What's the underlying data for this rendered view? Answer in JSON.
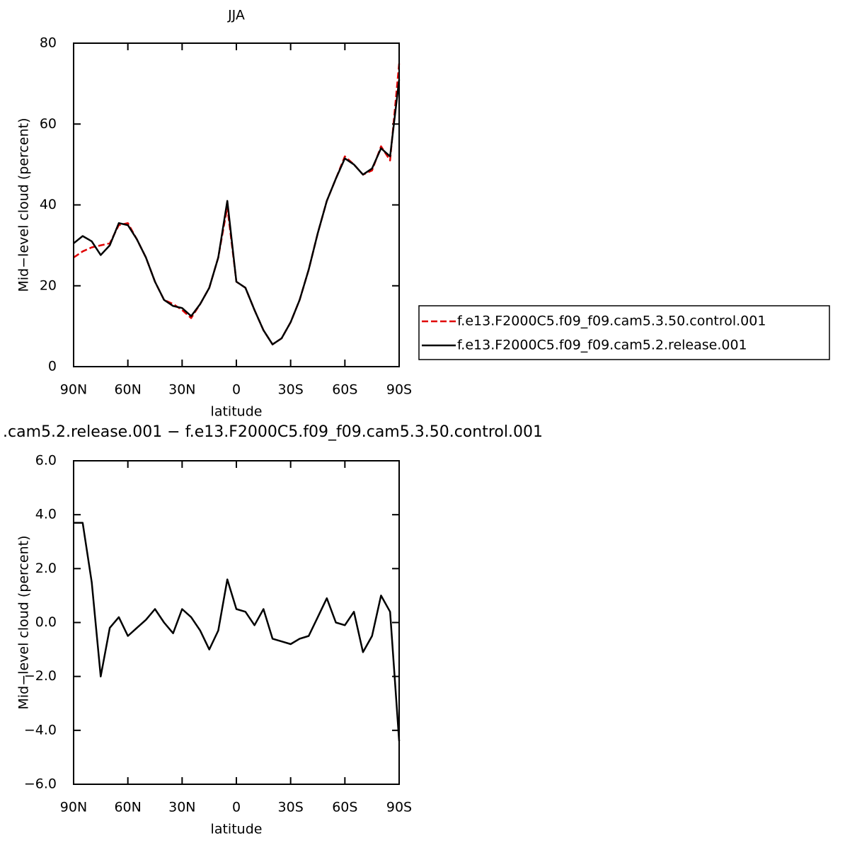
{
  "chart_data": [
    {
      "type": "line",
      "title": "JJA",
      "x_label": "latitude",
      "y_label": "Mid−level cloud (percent)",
      "x": [
        90,
        85,
        80,
        75,
        70,
        65,
        60,
        55,
        50,
        45,
        40,
        35,
        30,
        25,
        20,
        15,
        10,
        5,
        0,
        -5,
        -10,
        -15,
        -20,
        -25,
        -30,
        -35,
        -40,
        -45,
        -50,
        -55,
        -60,
        -65,
        -70,
        -75,
        -80,
        -85,
        -90
      ],
      "series": [
        {
          "name": "f.e13.F2000C5.f09_f09.cam5.3.50.control.001",
          "color": "#e00000",
          "dash": true,
          "values": [
            27,
            28.5,
            29.5,
            30,
            30.5,
            35,
            35.5,
            31.5,
            27,
            21,
            16.5,
            15.5,
            14,
            12,
            15.5,
            19.5,
            27,
            39.5,
            21,
            19.5,
            14,
            9,
            5.5,
            7,
            11,
            16.5,
            24,
            33,
            41,
            46.5,
            52,
            50,
            47.5,
            48.5,
            54.5,
            51,
            75
          ]
        },
        {
          "name": "f.e13.F2000C5.f09_f09.cam5.2.release.001",
          "color": "#000000",
          "dash": false,
          "values": [
            30.5,
            32.3,
            31,
            27.6,
            30,
            35.5,
            35,
            31.5,
            27,
            21,
            16.5,
            15,
            14.5,
            12.5,
            15.5,
            19.5,
            27,
            41,
            21,
            19.5,
            14,
            9,
            5.5,
            7,
            11,
            16.5,
            24,
            33,
            41,
            46.5,
            51.5,
            50,
            47.5,
            49,
            54,
            52,
            71
          ]
        }
      ],
      "xlim": [
        90,
        -90
      ],
      "xticks": [
        {
          "value": 90,
          "label": "90N"
        },
        {
          "value": 60,
          "label": "60N"
        },
        {
          "value": 30,
          "label": "30N"
        },
        0,
        {
          "value": -30,
          "label": "30S"
        },
        {
          "value": -60,
          "label": "60S"
        },
        {
          "value": -90,
          "label": "90S"
        }
      ],
      "ylim": [
        0,
        80
      ],
      "yticks": [
        0,
        20,
        40,
        60,
        80
      ],
      "legend": "right"
    },
    {
      "type": "line",
      "title": ".cam5.2.release.001 − f.e13.F2000C5.f09_f09.cam5.3.50.control.001",
      "x_label": "latitude",
      "y_label": "Mid−level cloud (percent)",
      "x": [
        90,
        85,
        80,
        75,
        70,
        65,
        60,
        55,
        50,
        45,
        40,
        35,
        30,
        25,
        20,
        15,
        10,
        5,
        0,
        -5,
        -10,
        -15,
        -20,
        -25,
        -30,
        -35,
        -40,
        -45,
        -50,
        -55,
        -60,
        -65,
        -70,
        -75,
        -80,
        -85,
        -90
      ],
      "series": [
        {
          "name": "difference",
          "color": "#000000",
          "dash": false,
          "values": [
            3.7,
            3.7,
            1.5,
            -2.0,
            -0.2,
            0.2,
            -0.5,
            -0.2,
            0.1,
            0.5,
            0.0,
            -0.4,
            0.5,
            0.2,
            -0.3,
            -1.0,
            -0.3,
            1.6,
            0.5,
            0.4,
            -0.1,
            0.5,
            -0.6,
            -0.7,
            -0.8,
            -0.6,
            -0.5,
            0.2,
            0.9,
            0.0,
            -0.1,
            0.4,
            -1.1,
            -0.5,
            1.0,
            0.4,
            -4.4
          ]
        }
      ],
      "xlim": [
        90,
        -90
      ],
      "xticks": [
        {
          "value": 90,
          "label": "90N"
        },
        {
          "value": 60,
          "label": "60N"
        },
        {
          "value": 30,
          "label": "30N"
        },
        0,
        {
          "value": -30,
          "label": "30S"
        },
        {
          "value": -60,
          "label": "60S"
        },
        {
          "value": -90,
          "label": "90S"
        }
      ],
      "ylim": [
        -6,
        6
      ],
      "yticks": [
        {
          "value": -6,
          "label": "−6.0"
        },
        {
          "value": -4,
          "label": "−4.0"
        },
        {
          "value": -2,
          "label": "−2.0"
        },
        {
          "value": 0,
          "label": "0.0"
        },
        {
          "value": 2,
          "label": "2.0"
        },
        {
          "value": 4,
          "label": "4.0"
        },
        {
          "value": 6,
          "label": "6.0"
        }
      ]
    }
  ]
}
